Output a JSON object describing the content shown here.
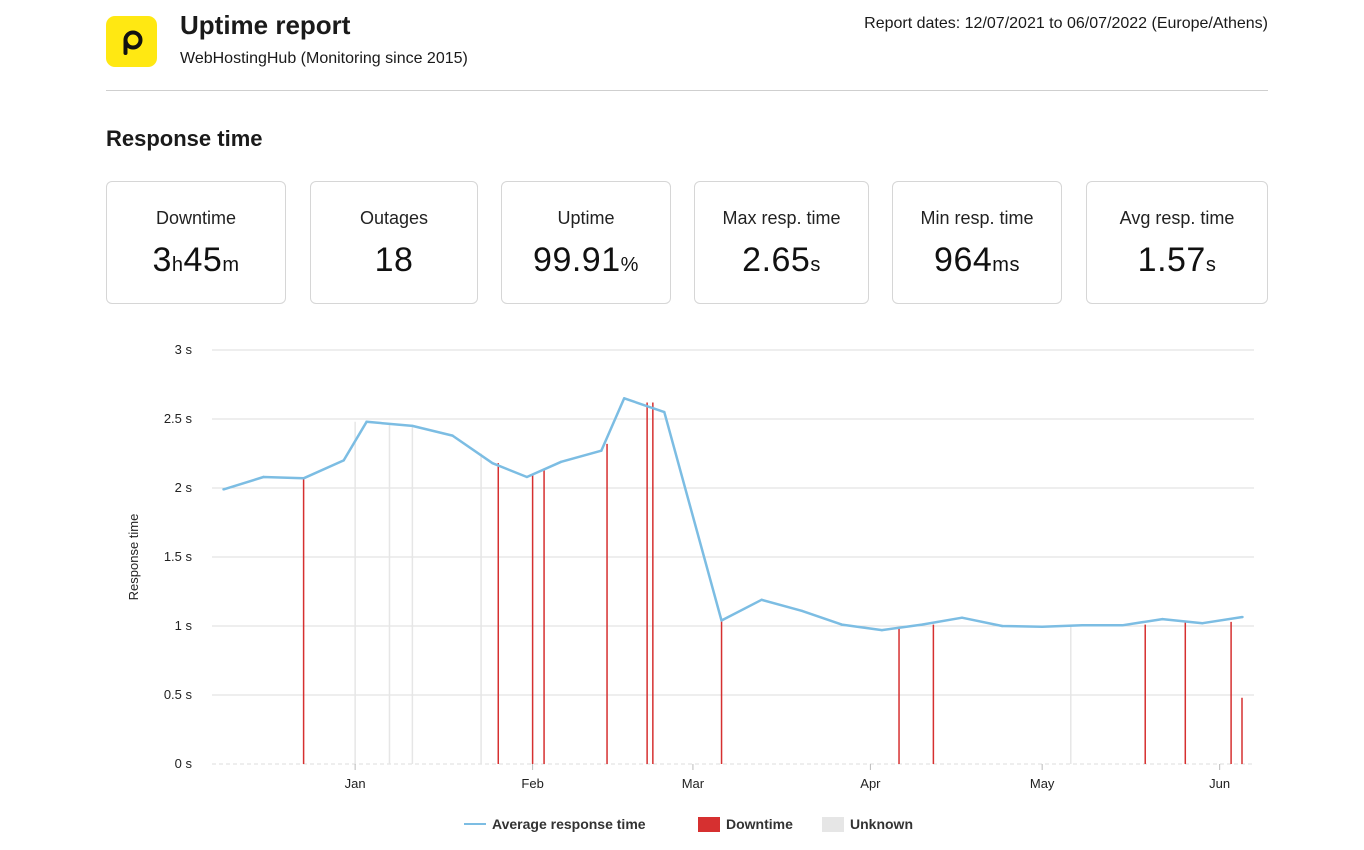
{
  "header": {
    "logo_icon": "p-logo-icon",
    "title": "Uptime report",
    "subtitle": "WebHostingHub (Monitoring since 2015)",
    "report_dates": "Report dates: 12/07/2021 to 06/07/2022 (Europe/Athens)"
  },
  "section_title": "Response time",
  "stats": [
    {
      "label": "Downtime",
      "parts": [
        [
          "3",
          false
        ],
        [
          "h",
          true
        ],
        [
          "45",
          false
        ],
        [
          "m",
          true
        ]
      ]
    },
    {
      "label": "Outages",
      "parts": [
        [
          "18",
          false
        ]
      ]
    },
    {
      "label": "Uptime",
      "parts": [
        [
          "99.91",
          false
        ],
        [
          "%",
          true
        ]
      ]
    },
    {
      "label": "Max resp. time",
      "parts": [
        [
          "2.65",
          false
        ],
        [
          "s",
          true
        ]
      ]
    },
    {
      "label": "Min resp. time",
      "parts": [
        [
          "964",
          false
        ],
        [
          "ms",
          true
        ]
      ]
    },
    {
      "label": "Avg resp. time",
      "parts": [
        [
          "1.57",
          false
        ],
        [
          "s",
          true
        ]
      ]
    }
  ],
  "colors": {
    "line": "#7cbde3",
    "downtime": "#d63030",
    "unknown": "#e6e6e6",
    "grid": "#dcdcdc",
    "logo": "#ffe812"
  },
  "chart_data": {
    "type": "line",
    "ylabel": "Response time",
    "y_ticks": [
      "0 s",
      "0.5 s",
      "1 s",
      "1.5 s",
      "2 s",
      "2.5 s",
      "3 s"
    ],
    "ylim": [
      0,
      3
    ],
    "x_ticks": [
      "Jan",
      "Feb",
      "Mar",
      "Apr",
      "May",
      "Jun"
    ],
    "x_range": [
      "2021-12-07",
      "2022-06-07"
    ],
    "x_tick_dates": [
      "2022-01-01",
      "2022-02-01",
      "2022-03-01",
      "2022-04-01",
      "2022-05-01",
      "2022-06-01"
    ],
    "grid": true,
    "series": [
      {
        "name": "Average response time",
        "points": [
          [
            "2021-12-09",
            1.99
          ],
          [
            "2021-12-16",
            2.08
          ],
          [
            "2021-12-23",
            2.07
          ],
          [
            "2021-12-30",
            2.2
          ],
          [
            "2022-01-03",
            2.48
          ],
          [
            "2022-01-11",
            2.45
          ],
          [
            "2022-01-18",
            2.38
          ],
          [
            "2022-01-25",
            2.18
          ],
          [
            "2022-01-31",
            2.08
          ],
          [
            "2022-02-06",
            2.19
          ],
          [
            "2022-02-13",
            2.27
          ],
          [
            "2022-02-17",
            2.65
          ],
          [
            "2022-02-24",
            2.55
          ],
          [
            "2022-03-06",
            1.04
          ],
          [
            "2022-03-13",
            1.19
          ],
          [
            "2022-03-20",
            1.11
          ],
          [
            "2022-03-27",
            1.01
          ],
          [
            "2022-04-03",
            0.97
          ],
          [
            "2022-04-10",
            1.01
          ],
          [
            "2022-04-17",
            1.06
          ],
          [
            "2022-04-24",
            1.0
          ],
          [
            "2022-05-01",
            0.995
          ],
          [
            "2022-05-08",
            1.005
          ],
          [
            "2022-05-15",
            1.005
          ],
          [
            "2022-05-22",
            1.05
          ],
          [
            "2022-05-29",
            1.02
          ],
          [
            "2022-06-05",
            1.065
          ]
        ]
      }
    ],
    "downtime": [
      {
        "date": "2021-12-23",
        "value": 2.07
      },
      {
        "date": "2022-01-26",
        "value": 2.18
      },
      {
        "date": "2022-02-01",
        "value": 2.1
      },
      {
        "date": "2022-02-03",
        "value": 2.13
      },
      {
        "date": "2022-02-14",
        "value": 2.32
      },
      {
        "date": "2022-02-21",
        "value": 2.62
      },
      {
        "date": "2022-02-22",
        "value": 2.62
      },
      {
        "date": "2022-03-06",
        "value": 1.04
      },
      {
        "date": "2022-04-06",
        "value": 0.99
      },
      {
        "date": "2022-04-12",
        "value": 1.01
      },
      {
        "date": "2022-05-19",
        "value": 1.01
      },
      {
        "date": "2022-05-26",
        "value": 1.04
      },
      {
        "date": "2022-06-03",
        "value": 1.03
      },
      {
        "date": "2022-06-09",
        "value": 0.48
      }
    ],
    "unknown": [
      {
        "date": "2022-01-01",
        "value": 2.48
      },
      {
        "date": "2022-01-07",
        "value": 2.46
      },
      {
        "date": "2022-01-11",
        "value": 2.45
      },
      {
        "date": "2022-01-23",
        "value": 2.25
      },
      {
        "date": "2022-05-06",
        "value": 0.995
      }
    ],
    "legend": [
      {
        "label": "Average response time",
        "kind": "line"
      },
      {
        "label": "Downtime",
        "kind": "downtime"
      },
      {
        "label": "Unknown",
        "kind": "unknown"
      }
    ],
    "legend_position": "bottom"
  }
}
